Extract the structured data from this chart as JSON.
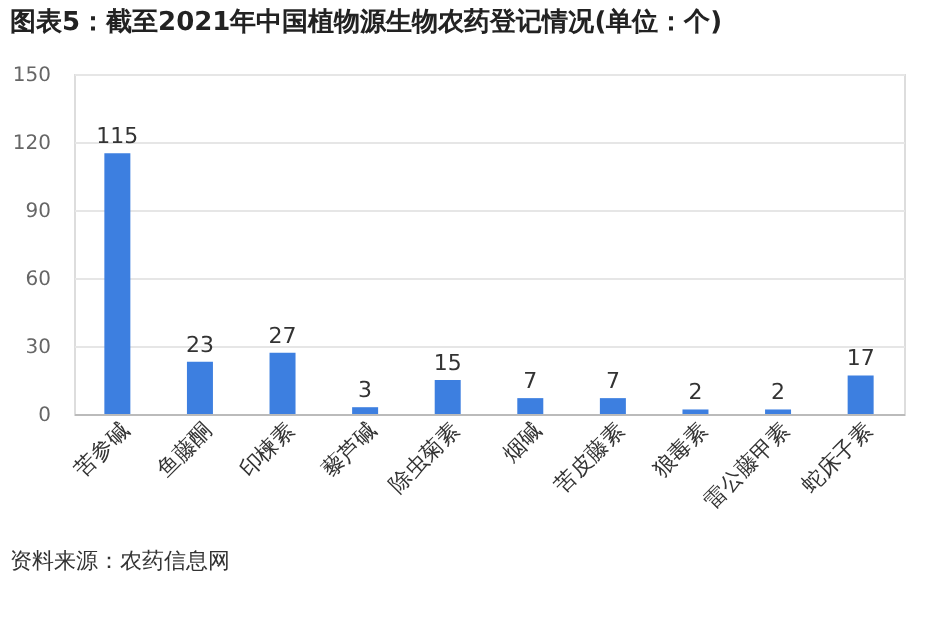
{
  "chart_data": {
    "type": "bar",
    "title": "图表5：截至2021年中国植物源生物农药登记情况(单位：个)",
    "categories": [
      "苦参碱",
      "鱼藤酮",
      "印楝素",
      "藜芦碱",
      "除虫菊素",
      "烟碱",
      "苦皮藤素",
      "狼毒素",
      "雷公藤甲素",
      "蛇床子素"
    ],
    "values": [
      115,
      23,
      27,
      3,
      15,
      7,
      7,
      2,
      2,
      17
    ],
    "color": "#3d7fe0",
    "ylim": [
      0,
      150
    ],
    "yticks": [
      0,
      30,
      60,
      90,
      120,
      150
    ],
    "grid": "y",
    "data_labels": true,
    "annotations": [
      "资料来源：农药信息网"
    ]
  }
}
